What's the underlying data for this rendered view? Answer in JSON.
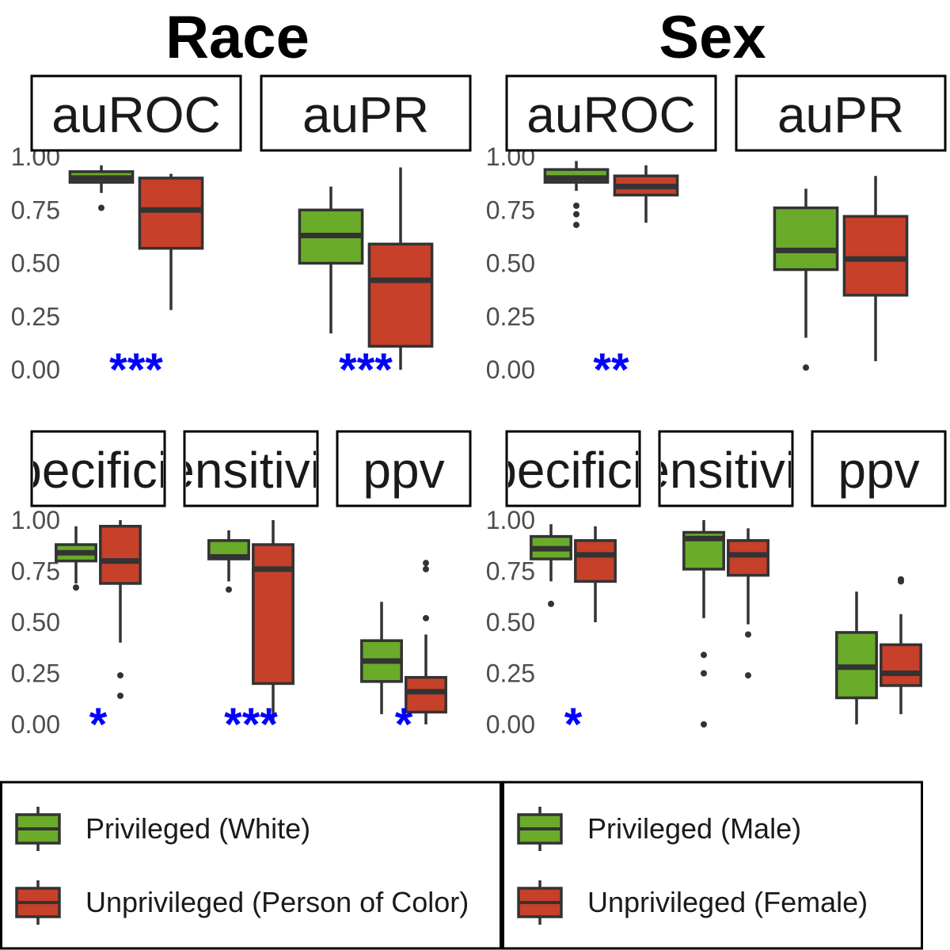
{
  "colors": {
    "privileged": "#6aab2a",
    "unprivileged": "#c7402a",
    "box_stroke": "#333333",
    "significance": "#0000ff"
  },
  "y_ticks": [
    "0.00",
    "0.25",
    "0.50",
    "0.75",
    "1.00"
  ],
  "legends": [
    {
      "items": [
        {
          "label": "Privileged (White)",
          "group": "privileged"
        },
        {
          "label": "Unprivileged (Person of Color)",
          "group": "unprivileged"
        }
      ]
    },
    {
      "items": [
        {
          "label": "Privileged (Male)",
          "group": "privileged"
        },
        {
          "label": "Unprivileged (Female)",
          "group": "unprivileged"
        }
      ]
    }
  ],
  "chart_data": [
    {
      "type": "box",
      "title": "Race",
      "ylim": [
        0,
        1
      ],
      "panels": [
        {
          "strip": "auROC",
          "significance": "***",
          "boxes": [
            {
              "group": "privileged",
              "q1": 0.88,
              "median": 0.9,
              "q3": 0.93,
              "whisker_low": 0.83,
              "whisker_high": 0.96,
              "outliers": [
                0.76
              ]
            },
            {
              "group": "unprivileged",
              "q1": 0.57,
              "median": 0.75,
              "q3": 0.9,
              "whisker_low": 0.28,
              "whisker_high": 0.92,
              "outliers": []
            }
          ]
        },
        {
          "strip": "auPR",
          "significance": "***",
          "boxes": [
            {
              "group": "privileged",
              "q1": 0.5,
              "median": 0.63,
              "q3": 0.75,
              "whisker_low": 0.17,
              "whisker_high": 0.86,
              "outliers": []
            },
            {
              "group": "unprivileged",
              "q1": 0.11,
              "median": 0.42,
              "q3": 0.59,
              "whisker_low": 0.0,
              "whisker_high": 0.95,
              "outliers": []
            }
          ]
        },
        {
          "strip": "specificity",
          "significance": "*",
          "boxes": [
            {
              "group": "privileged",
              "q1": 0.8,
              "median": 0.84,
              "q3": 0.88,
              "whisker_low": 0.69,
              "whisker_high": 0.97,
              "outliers": [
                0.67
              ]
            },
            {
              "group": "unprivileged",
              "q1": 0.69,
              "median": 0.8,
              "q3": 0.97,
              "whisker_low": 0.4,
              "whisker_high": 1.0,
              "outliers": [
                0.24,
                0.14
              ]
            }
          ]
        },
        {
          "strip": "sensitivity",
          "significance": "***",
          "boxes": [
            {
              "group": "privileged",
              "q1": 0.81,
              "median": 0.82,
              "q3": 0.9,
              "whisker_low": 0.7,
              "whisker_high": 0.95,
              "outliers": [
                0.66
              ]
            },
            {
              "group": "unprivileged",
              "q1": 0.2,
              "median": 0.76,
              "q3": 0.88,
              "whisker_low": 0.0,
              "whisker_high": 1.0,
              "outliers": []
            }
          ]
        },
        {
          "strip": "ppv",
          "significance": "*",
          "boxes": [
            {
              "group": "privileged",
              "q1": 0.21,
              "median": 0.31,
              "q3": 0.41,
              "whisker_low": 0.05,
              "whisker_high": 0.6,
              "outliers": []
            },
            {
              "group": "unprivileged",
              "q1": 0.06,
              "median": 0.16,
              "q3": 0.23,
              "whisker_low": 0.0,
              "whisker_high": 0.44,
              "outliers": [
                0.79,
                0.76,
                0.52
              ]
            }
          ]
        }
      ]
    },
    {
      "type": "box",
      "title": "Sex",
      "ylim": [
        0,
        1
      ],
      "panels": [
        {
          "strip": "auROC",
          "significance": "**",
          "boxes": [
            {
              "group": "privileged",
              "q1": 0.88,
              "median": 0.9,
              "q3": 0.94,
              "whisker_low": 0.84,
              "whisker_high": 0.98,
              "outliers": [
                0.77,
                0.73,
                0.68
              ]
            },
            {
              "group": "unprivileged",
              "q1": 0.82,
              "median": 0.86,
              "q3": 0.91,
              "whisker_low": 0.69,
              "whisker_high": 0.96,
              "outliers": []
            }
          ]
        },
        {
          "strip": "auPR",
          "significance": "",
          "boxes": [
            {
              "group": "privileged",
              "q1": 0.47,
              "median": 0.56,
              "q3": 0.76,
              "whisker_low": 0.15,
              "whisker_high": 0.85,
              "outliers": [
                0.01
              ]
            },
            {
              "group": "unprivileged",
              "q1": 0.35,
              "median": 0.52,
              "q3": 0.72,
              "whisker_low": 0.04,
              "whisker_high": 0.91,
              "outliers": []
            }
          ]
        },
        {
          "strip": "specificity",
          "significance": "*",
          "boxes": [
            {
              "group": "privileged",
              "q1": 0.81,
              "median": 0.86,
              "q3": 0.92,
              "whisker_low": 0.7,
              "whisker_high": 0.98,
              "outliers": [
                0.59
              ]
            },
            {
              "group": "unprivileged",
              "q1": 0.7,
              "median": 0.83,
              "q3": 0.9,
              "whisker_low": 0.5,
              "whisker_high": 0.97,
              "outliers": []
            }
          ]
        },
        {
          "strip": "sensitivity",
          "significance": "",
          "boxes": [
            {
              "group": "privileged",
              "q1": 0.76,
              "median": 0.91,
              "q3": 0.94,
              "whisker_low": 0.52,
              "whisker_high": 1.0,
              "outliers": [
                0.34,
                0.25,
                0.0
              ]
            },
            {
              "group": "unprivileged",
              "q1": 0.73,
              "median": 0.83,
              "q3": 0.9,
              "whisker_low": 0.49,
              "whisker_high": 0.96,
              "outliers": [
                0.44,
                0.24
              ]
            }
          ]
        },
        {
          "strip": "ppv",
          "significance": "",
          "boxes": [
            {
              "group": "privileged",
              "q1": 0.13,
              "median": 0.28,
              "q3": 0.45,
              "whisker_low": 0.0,
              "whisker_high": 0.65,
              "outliers": []
            },
            {
              "group": "unprivileged",
              "q1": 0.19,
              "median": 0.25,
              "q3": 0.39,
              "whisker_low": 0.05,
              "whisker_high": 0.54,
              "outliers": [
                0.71,
                0.7
              ]
            }
          ]
        }
      ]
    }
  ]
}
